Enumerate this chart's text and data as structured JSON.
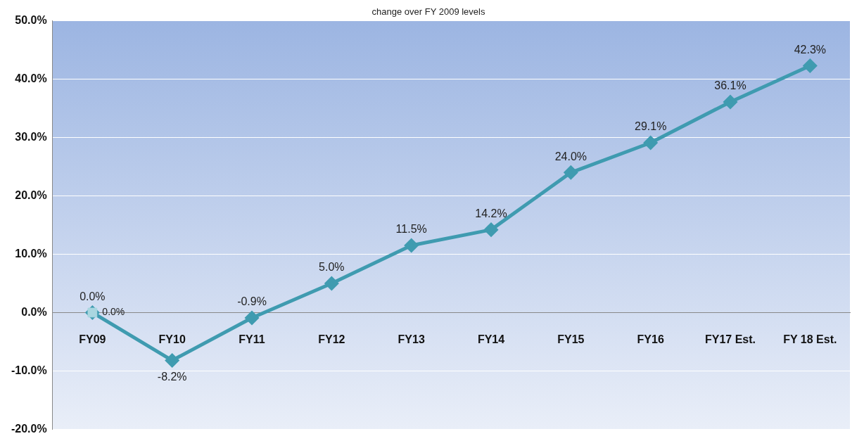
{
  "chart_data": {
    "type": "line",
    "title": "change over FY 2009 levels",
    "categories": [
      "FY09",
      "FY10",
      "FY11",
      "FY12",
      "FY13",
      "FY14",
      "FY15",
      "FY16",
      "FY17 Est.",
      "FY 18 Est."
    ],
    "series": [
      {
        "color": "#3f9bb0",
        "marker": "diamond",
        "values": [
          0.0,
          -8.2,
          -0.9,
          5.0,
          11.5,
          14.2,
          24.0,
          29.1,
          36.1,
          42.3
        ],
        "value_labels": [
          "0.0%",
          "-8.2%",
          "-0.9%",
          "5.0%",
          "11.5%",
          "14.2%",
          "24.0%",
          "29.1%",
          "36.1%",
          "42.3%"
        ]
      },
      {
        "type": "scatter",
        "color": "#a9d6e0",
        "marker": "square",
        "values": [
          0.0,
          null,
          null,
          null,
          null,
          null,
          null,
          null,
          null,
          null
        ],
        "value_labels": [
          "0.0%",
          null,
          null,
          null,
          null,
          null,
          null,
          null,
          null,
          null
        ]
      }
    ],
    "ylim": [
      -20,
      50
    ],
    "yticks": [
      {
        "value": -20,
        "label": "-20.0%"
      },
      {
        "value": -10,
        "label": "-10.0%"
      },
      {
        "value": 0,
        "label": "0.0%"
      },
      {
        "value": 10,
        "label": "10.0%"
      },
      {
        "value": 20,
        "label": "20.0%"
      },
      {
        "value": 30,
        "label": "30.0%"
      },
      {
        "value": 40,
        "label": "40.0%"
      },
      {
        "value": 50,
        "label": "50.0%"
      }
    ],
    "grid": "y",
    "legend": false
  }
}
